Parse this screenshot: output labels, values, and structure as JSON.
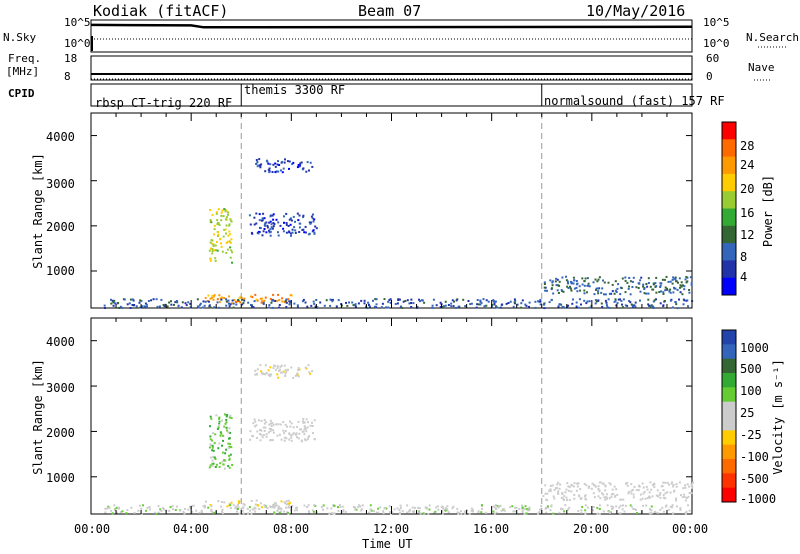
{
  "header": {
    "station": "Kodiak (fitACF)",
    "beam": "Beam 07",
    "date": "10/May/2016"
  },
  "top_panels": {
    "nsky_label": "N.Sky",
    "nsearch_label": "N.Search",
    "nsky_ticks": [
      "10^5",
      "10^0"
    ],
    "freq_label_1": "Freq.",
    "freq_label_2": "[MHz]",
    "freq_ticks": [
      "18",
      "8"
    ],
    "nave_label": "Nave",
    "nave_ticks": [
      "60",
      "0"
    ],
    "cpid_label": "CPID",
    "cpid_segments": [
      {
        "label": "rbsp CT-trig 220 RF",
        "start_hour": 0
      },
      {
        "label": "themis 3300 RF",
        "start_hour": 6
      },
      {
        "label": "normalsound (fast) 157 RF",
        "start_hour": 18
      }
    ]
  },
  "power_panel": {
    "ylabel": "Slant Range [km]",
    "yticks": [
      "4000",
      "3000",
      "2000",
      "1000"
    ],
    "colorbar_label": "Power [dB]",
    "colorbar_ticks": [
      "28",
      "24",
      "20",
      "16",
      "12",
      "8",
      "4"
    ],
    "colors": [
      "#ff0000",
      "#ff6a00",
      "#ff9900",
      "#ffcc00",
      "#99cc33",
      "#33aa33",
      "#336633",
      "#3366bb",
      "#2233aa",
      "#0000ff"
    ]
  },
  "velocity_panel": {
    "ylabel": "Slant Range [km]",
    "yticks": [
      "4000",
      "3000",
      "2000",
      "1000"
    ],
    "colorbar_label": "Velocity [m s⁻¹]",
    "colorbar_ticks": [
      "1000",
      "500",
      "100",
      "25",
      "-25",
      "-100",
      "-500",
      "-1000"
    ],
    "colors": [
      "#2244aa",
      "#3366bb",
      "#336633",
      "#33aa33",
      "#66cc33",
      "#cccccc",
      "#cccccc",
      "#ffcc00",
      "#ff9900",
      "#ff6a00",
      "#ff3300",
      "#ff0000"
    ]
  },
  "xaxis": {
    "label": "Time UT",
    "ticks": [
      "00:00",
      "04:00",
      "08:00",
      "12:00",
      "16:00",
      "20:00",
      "00:00"
    ]
  },
  "chart_data": [
    {
      "type": "heatmap",
      "title": "Kodiak (fitACF) Beam 07 10/May/2016",
      "quantity": "Power [dB]",
      "xlabel": "Time UT",
      "ylabel": "Slant Range [km]",
      "xlim_hours": [
        0,
        24
      ],
      "ylim_km": [
        180,
        4500
      ],
      "clim": [
        0,
        30
      ],
      "regions": [
        {
          "t": [
            4.5,
            8.0
          ],
          "range_km": [
            300,
            500
          ],
          "power_db": 24
        },
        {
          "t": [
            4.7,
            5.6
          ],
          "range_km": [
            1200,
            2400
          ],
          "power_db": 18
        },
        {
          "t": [
            6.3,
            9.0
          ],
          "range_km": [
            1800,
            2300
          ],
          "power_db": 4
        },
        {
          "t": [
            6.5,
            8.8
          ],
          "range_km": [
            3200,
            3500
          ],
          "power_db": 4
        },
        {
          "t": [
            0.5,
            24.0
          ],
          "range_km": [
            200,
            400
          ],
          "power_db": 6
        },
        {
          "t": [
            18.0,
            24.0
          ],
          "range_km": [
            500,
            900
          ],
          "power_db": 8
        }
      ]
    },
    {
      "type": "heatmap",
      "quantity": "Velocity [m s⁻¹]",
      "xlabel": "Time UT",
      "ylabel": "Slant Range [km]",
      "xlim_hours": [
        0,
        24
      ],
      "ylim_km": [
        180,
        4500
      ],
      "clim": [
        -1000,
        1000
      ],
      "regions": [
        {
          "t": [
            4.5,
            8.0
          ],
          "range_km": [
            300,
            500
          ],
          "velocity": -80
        },
        {
          "t": [
            4.7,
            5.6
          ],
          "range_km": [
            1200,
            2400
          ],
          "velocity": 300
        },
        {
          "t": [
            6.3,
            9.0
          ],
          "range_km": [
            1800,
            2300
          ],
          "velocity": 0
        },
        {
          "t": [
            6.5,
            8.8
          ],
          "range_km": [
            3200,
            3500
          ],
          "velocity": -50
        },
        {
          "t": [
            0.5,
            24.0
          ],
          "range_km": [
            200,
            400
          ],
          "velocity": 60
        },
        {
          "t": [
            18.0,
            24.0
          ],
          "range_km": [
            500,
            900
          ],
          "velocity": 0
        }
      ]
    },
    {
      "type": "line",
      "series": [
        {
          "name": "N.Sky",
          "t": [
            0,
            4,
            4.5,
            24
          ],
          "log_value": [
            4.4,
            4.3,
            3.9,
            4.0
          ]
        },
        {
          "name": "Freq.",
          "t": [
            0,
            24
          ],
          "mhz": [
            10,
            10
          ]
        }
      ]
    }
  ]
}
